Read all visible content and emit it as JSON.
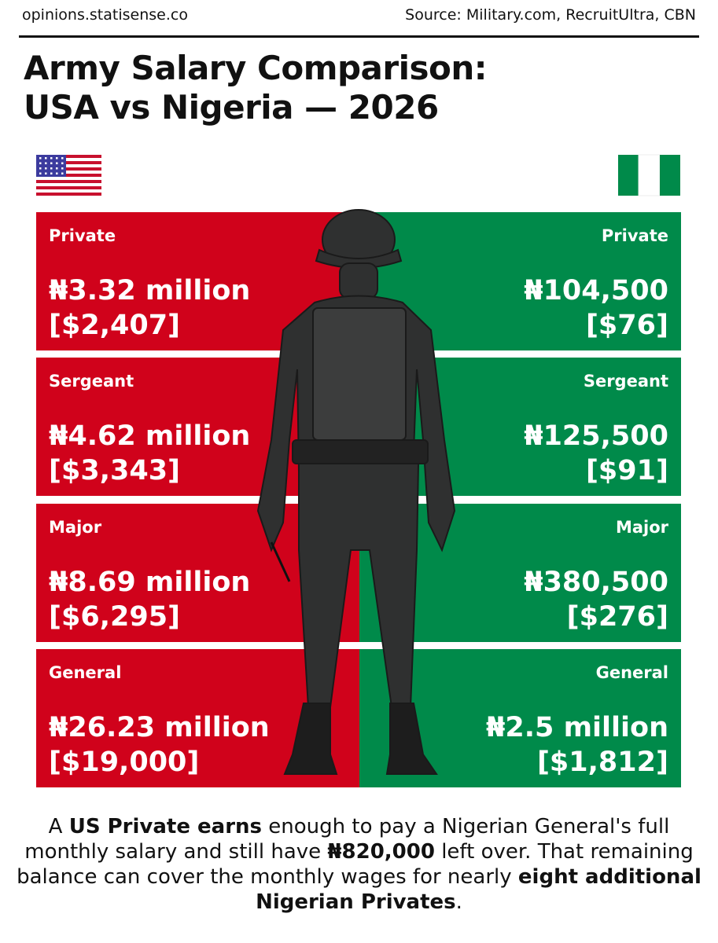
{
  "header": {
    "site": "opinions.statisense.co",
    "source": "Source: Military.com, RecruitUltra, CBN",
    "title_line_1": "Army Salary Comparison:",
    "title_line_2": "USA vs  Nigeria — 2026"
  },
  "rows": [
    {
      "rank": "Private",
      "us_naira": "₦3.32 million",
      "us_dollar": "[$2,407]",
      "ng_naira": "₦104,500",
      "ng_dollar": "[$76]"
    },
    {
      "rank": "Sergeant",
      "us_naira": "₦4.62 million",
      "us_dollar": "[$3,343]",
      "ng_naira": "₦125,500",
      "ng_dollar": "[$91]"
    },
    {
      "rank": "Major",
      "us_naira": "₦8.69 million",
      "us_dollar": "[$6,295]",
      "ng_naira": "₦380,500",
      "ng_dollar": "[$276]"
    },
    {
      "rank": "General",
      "us_naira": "₦26.23 million",
      "us_dollar": "[$19,000]",
      "ng_naira": "₦2.5 million",
      "ng_dollar": "[$1,812]"
    }
  ],
  "footnote": [
    {
      "text": "A ",
      "bold": false
    },
    {
      "text": "US Private earns",
      "bold": true
    },
    {
      "text": " enough to pay a Nigerian General's full monthly salary and still have ",
      "bold": false
    },
    {
      "text": "₦820,000",
      "bold": true
    },
    {
      "text": " left over. That remaining balance can cover the monthly wages for nearly ",
      "bold": false
    },
    {
      "text": "eight additional Nigerian Privates",
      "bold": true
    },
    {
      "text": ".",
      "bold": false
    }
  ]
}
